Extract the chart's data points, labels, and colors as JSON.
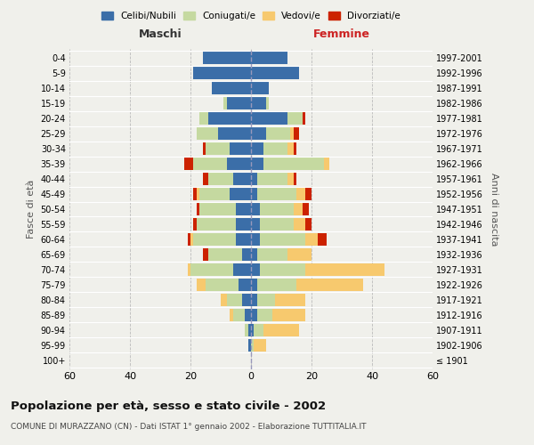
{
  "age_groups": [
    "100+",
    "95-99",
    "90-94",
    "85-89",
    "80-84",
    "75-79",
    "70-74",
    "65-69",
    "60-64",
    "55-59",
    "50-54",
    "45-49",
    "40-44",
    "35-39",
    "30-34",
    "25-29",
    "20-24",
    "15-19",
    "10-14",
    "5-9",
    "0-4"
  ],
  "birth_years": [
    "≤ 1901",
    "1902-1906",
    "1907-1911",
    "1912-1916",
    "1917-1921",
    "1922-1926",
    "1927-1931",
    "1932-1936",
    "1937-1941",
    "1942-1946",
    "1947-1951",
    "1952-1956",
    "1957-1961",
    "1962-1966",
    "1967-1971",
    "1972-1976",
    "1977-1981",
    "1982-1986",
    "1987-1991",
    "1992-1996",
    "1997-2001"
  ],
  "maschi": {
    "celibi": [
      0,
      1,
      1,
      2,
      3,
      4,
      6,
      3,
      5,
      5,
      5,
      7,
      6,
      8,
      7,
      11,
      14,
      8,
      13,
      19,
      16
    ],
    "coniugati": [
      0,
      0,
      1,
      4,
      5,
      11,
      14,
      11,
      14,
      13,
      12,
      10,
      8,
      11,
      8,
      7,
      3,
      1,
      0,
      0,
      0
    ],
    "vedovi": [
      0,
      0,
      0,
      1,
      2,
      3,
      1,
      0,
      1,
      0,
      0,
      1,
      0,
      0,
      0,
      0,
      0,
      0,
      0,
      0,
      0
    ],
    "divorziati": [
      0,
      0,
      0,
      0,
      0,
      0,
      0,
      2,
      1,
      1,
      1,
      1,
      2,
      3,
      1,
      0,
      0,
      0,
      0,
      0,
      0
    ]
  },
  "femmine": {
    "nubili": [
      0,
      0,
      1,
      2,
      2,
      2,
      3,
      2,
      3,
      3,
      3,
      2,
      2,
      4,
      4,
      5,
      12,
      5,
      6,
      16,
      12
    ],
    "coniugate": [
      0,
      1,
      3,
      5,
      6,
      13,
      15,
      10,
      15,
      11,
      11,
      13,
      10,
      20,
      8,
      8,
      5,
      1,
      0,
      0,
      0
    ],
    "vedove": [
      0,
      4,
      12,
      11,
      10,
      22,
      26,
      8,
      4,
      4,
      3,
      3,
      2,
      2,
      2,
      1,
      0,
      0,
      0,
      0,
      0
    ],
    "divorziate": [
      0,
      0,
      0,
      0,
      0,
      0,
      0,
      0,
      3,
      2,
      2,
      2,
      1,
      0,
      1,
      2,
      1,
      0,
      0,
      0,
      0
    ]
  },
  "colors": {
    "celibi": "#3B6EA8",
    "coniugati": "#C5D9A0",
    "vedovi": "#F7C96E",
    "divorziati": "#CC2200"
  },
  "xlim": 60,
  "title": "Popolazione per età, sesso e stato civile - 2002",
  "subtitle": "COMUNE DI MURAZZANO (CN) - Dati ISTAT 1° gennaio 2002 - Elaborazione TUTTITALIA.IT",
  "xlabel_left": "Maschi",
  "xlabel_right": "Femmine",
  "ylabel_left": "Fasce di età",
  "ylabel_right": "Anni di nascita",
  "background_color": "#f0f0eb"
}
